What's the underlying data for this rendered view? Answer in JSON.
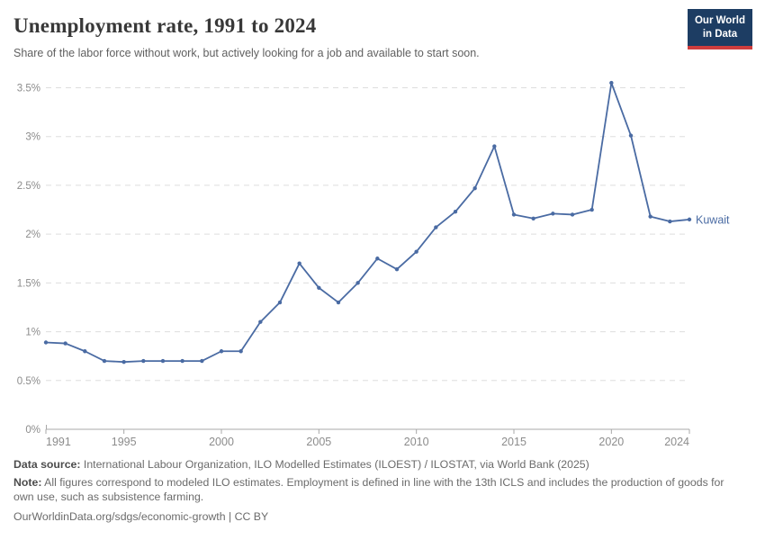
{
  "header": {
    "title": "Unemployment rate, 1991 to 2024",
    "subtitle": "Share of the labor force without work, but actively looking for a job and available to start soon."
  },
  "logo": {
    "line1": "Our World",
    "line2": "in Data",
    "bg_color": "#1d3d63",
    "accent_color": "#cf3d3d"
  },
  "chart_data": {
    "type": "line",
    "title": "Unemployment rate, 1991 to 2024",
    "x": [
      1991,
      1992,
      1993,
      1994,
      1995,
      1996,
      1997,
      1998,
      1999,
      2000,
      2001,
      2002,
      2003,
      2004,
      2005,
      2006,
      2007,
      2008,
      2009,
      2010,
      2011,
      2012,
      2013,
      2014,
      2015,
      2016,
      2017,
      2018,
      2019,
      2020,
      2021,
      2022,
      2023,
      2024
    ],
    "series": [
      {
        "name": "Kuwait",
        "color": "#4a6ba3",
        "values": [
          0.89,
          0.88,
          0.8,
          0.7,
          0.69,
          0.7,
          0.7,
          0.7,
          0.7,
          0.8,
          0.8,
          1.1,
          1.3,
          1.7,
          1.45,
          1.3,
          1.5,
          1.75,
          1.64,
          1.82,
          2.07,
          2.23,
          2.47,
          2.9,
          2.2,
          2.16,
          2.21,
          2.2,
          2.25,
          3.55,
          3.01,
          2.18,
          2.13,
          2.15
        ]
      }
    ],
    "xlabel": "",
    "ylabel": "",
    "ylim": [
      0,
      3.5
    ],
    "yticks": [
      0,
      0.5,
      1,
      1.5,
      2,
      2.5,
      3,
      3.5
    ],
    "ytick_labels": [
      "0%",
      "0.5%",
      "1%",
      "1.5%",
      "2%",
      "2.5%",
      "3%",
      "3.5%"
    ],
    "xticks": [
      1991,
      1995,
      2000,
      2005,
      2010,
      2015,
      2020,
      2024
    ],
    "grid": "horizontal-dashed",
    "grid_color": "#dedede",
    "axis_color": "#a8a8a8",
    "tick_label_color": "#8c8c8c",
    "legend_position": "line-end-label"
  },
  "footer": {
    "data_source_label": "Data source:",
    "data_source_text": "International Labour Organization, ILO Modelled Estimates (ILOEST) / ILOSTAT, via World Bank (2025)",
    "note_label": "Note:",
    "note_text": "All figures correspond to modeled ILO estimates. Employment is defined in line with the 13th ICLS and includes the production of goods for own use, such as subsistence farming.",
    "url": "OurWorldinData.org/sdgs/economic-growth",
    "separator": "|",
    "license": "CC BY"
  }
}
